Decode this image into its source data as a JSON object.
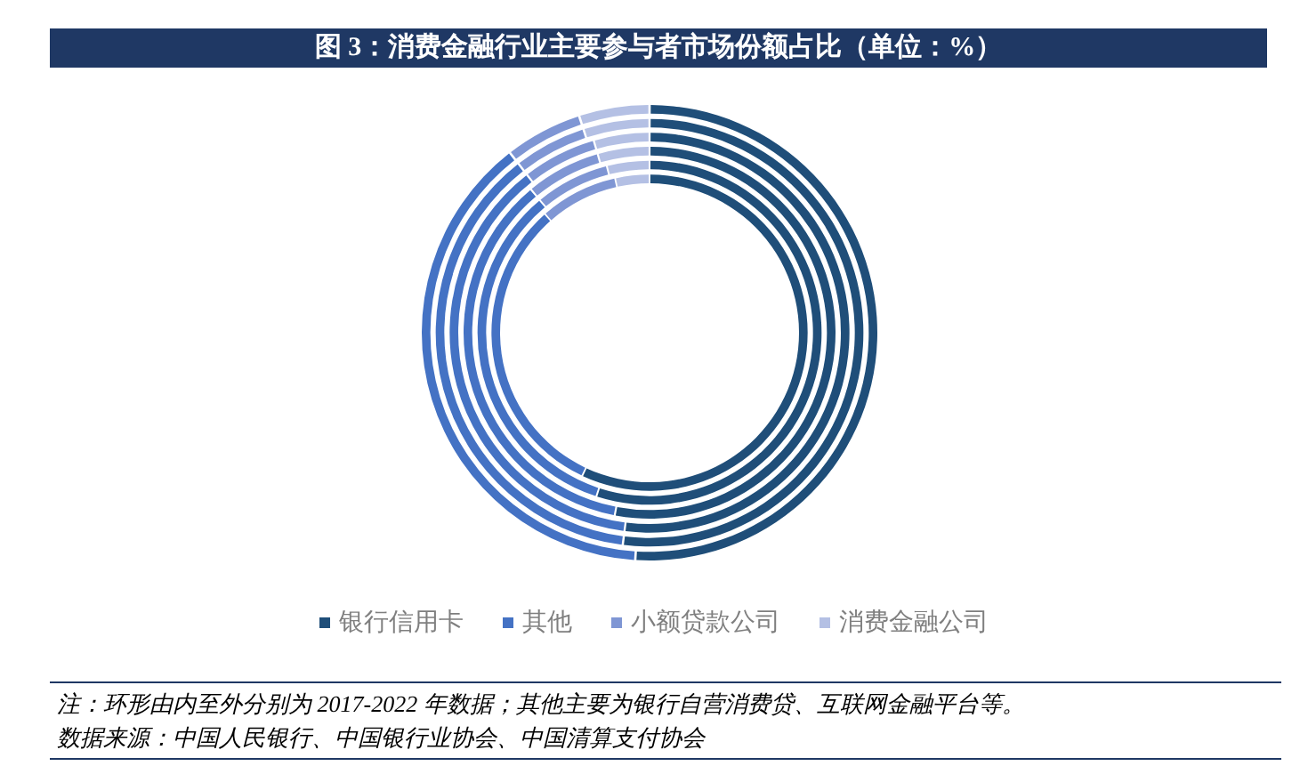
{
  "chart_data": {
    "type": "donut",
    "title": "图 3：消费金融行业主要参与者市场份额占比（单位：%）",
    "categories": [
      "银行信用卡",
      "其他",
      "小额贷款公司",
      "消费金融公司"
    ],
    "colors": [
      "#1f4e79",
      "#4472c4",
      "#7f96d4",
      "#b4c0e4"
    ],
    "series": [
      {
        "values": [
          57,
          31.5,
          8,
          3.5
        ]
      },
      {
        "values": [
          55,
          34,
          7,
          4
        ]
      },
      {
        "values": [
          53,
          36,
          6.5,
          4.5
        ]
      },
      {
        "values": [
          52,
          37.5,
          6,
          4.5
        ]
      },
      {
        "values": [
          52,
          37.5,
          5.5,
          5
        ]
      },
      {
        "values": [
          51,
          38.5,
          5.5,
          5
        ]
      }
    ],
    "legend": "bottom",
    "annotations": [
      "注：环形由内至外分别为 2017-2022 年数据；其他主要为银行自营消费贷、互联网金融平台等。",
      "数据来源：中国人民银行、中国银行业协会、中国清算支付协会"
    ]
  }
}
